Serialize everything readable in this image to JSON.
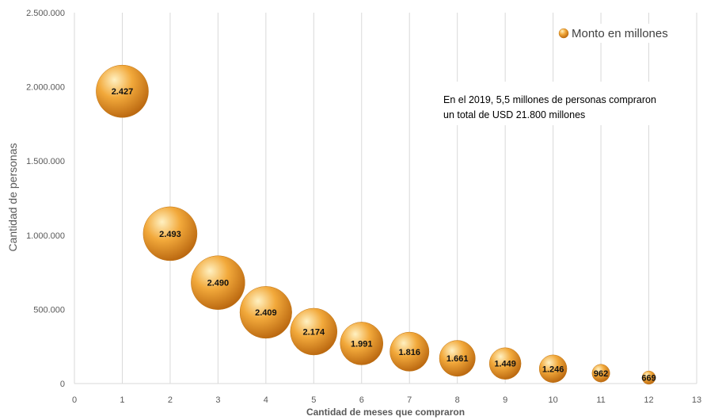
{
  "chart_data": {
    "type": "scatter",
    "subtype": "bubble",
    "xlabel": "Cantidad de meses que compraron",
    "ylabel": "Cantidad de personas",
    "xlim": [
      0,
      13
    ],
    "ylim": [
      0,
      2500000
    ],
    "x_ticks": [
      "0",
      "1",
      "2",
      "3",
      "4",
      "5",
      "6",
      "7",
      "8",
      "9",
      "10",
      "11",
      "12",
      "13"
    ],
    "y_ticks": [
      "0",
      "500.000",
      "1.000.000",
      "1.500.000",
      "2.000.000",
      "2.500.000"
    ],
    "grid": "vertical",
    "legend_position": "top-right",
    "series": [
      {
        "name": "Monto en millones",
        "points": [
          {
            "x": 1,
            "y": 1970000,
            "size": 2427,
            "label": "2.427"
          },
          {
            "x": 2,
            "y": 1010000,
            "size": 2493,
            "label": "2.493"
          },
          {
            "x": 3,
            "y": 680000,
            "size": 2490,
            "label": "2.490"
          },
          {
            "x": 4,
            "y": 480000,
            "size": 2409,
            "label": "2.409"
          },
          {
            "x": 5,
            "y": 350000,
            "size": 2174,
            "label": "2.174"
          },
          {
            "x": 6,
            "y": 270000,
            "size": 1991,
            "label": "1.991"
          },
          {
            "x": 7,
            "y": 215000,
            "size": 1816,
            "label": "1.816"
          },
          {
            "x": 8,
            "y": 170000,
            "size": 1661,
            "label": "1.661"
          },
          {
            "x": 9,
            "y": 135000,
            "size": 1449,
            "label": "1.449"
          },
          {
            "x": 10,
            "y": 100000,
            "size": 1246,
            "label": "1.246"
          },
          {
            "x": 11,
            "y": 70000,
            "size": 962,
            "label": "962"
          },
          {
            "x": 12,
            "y": 40000,
            "size": 669,
            "label": "669"
          }
        ]
      }
    ],
    "annotation": {
      "line1": "En el 2019, 5,5 millones de personas compraron",
      "line2": "un total de USD 21.800 millones"
    },
    "colors": {
      "bubble_highlight": "#fff1c2",
      "bubble_mid": "#f2a93b",
      "bubble_dark": "#b8650e",
      "grid": "#d9d9d9",
      "axis_text": "#595959"
    }
  }
}
